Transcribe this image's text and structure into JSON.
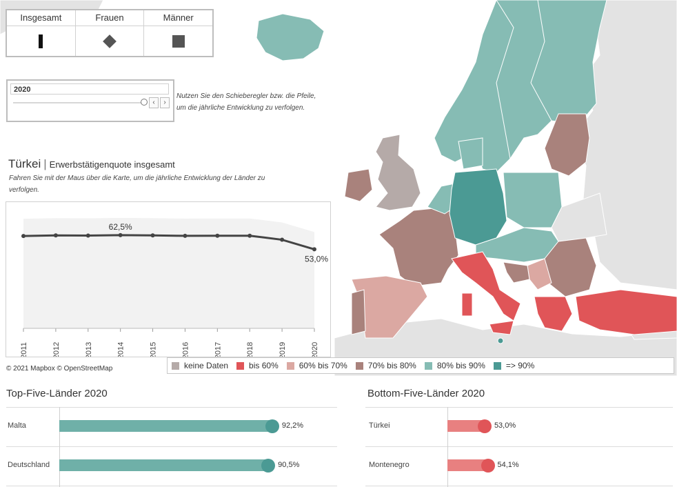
{
  "toggle": {
    "items": [
      {
        "label": "Insgesamt",
        "symbol": "bar-icon"
      },
      {
        "label": "Frauen",
        "symbol": "diamond-icon"
      },
      {
        "label": "Männer",
        "symbol": "square-icon"
      }
    ]
  },
  "slider": {
    "year": "2020",
    "position": 1.0,
    "hint_line1": "Nutzen Sie den Schieberegler bzw. die Pfeile,",
    "hint_line2": "um die jährliche Entwicklung zu verfolgen."
  },
  "detail": {
    "country": "Türkei",
    "separator": "|",
    "subtitle": "Erwerbstätigenquote insgesamt",
    "hint_line1": "Fahren Sie mit der Maus über die Karte, um die jährliche Entwicklung der Länder zu",
    "hint_line2": "verfolgen."
  },
  "copyright": "© 2021 Mapbox  © OpenStreetMap",
  "legend": [
    {
      "label": "keine Daten",
      "color": "#b5aaa8"
    },
    {
      "label": "bis 60%",
      "color": "#e05558"
    },
    {
      "label": "60% bis 70%",
      "color": "#dba8a2"
    },
    {
      "label": "70% bis 80%",
      "color": "#a9827c"
    },
    {
      "label": "80% bis 90%",
      "color": "#86bcb4"
    },
    {
      "label": "=> 90%",
      "color": "#4b9a94"
    }
  ],
  "top": {
    "title": "Top-Five-Länder 2020",
    "rows": [
      {
        "label": "Malta",
        "value": 92.2,
        "value_label": "92,2%"
      },
      {
        "label": "Deutschland",
        "value": 90.5,
        "value_label": "90,5%"
      }
    ]
  },
  "bottom": {
    "title": "Bottom-Five-Länder 2020",
    "rows": [
      {
        "label": "Türkei",
        "value": 53.0,
        "value_label": "53,0%"
      },
      {
        "label": "Montenegro",
        "value": 54.1,
        "value_label": "54,1%"
      }
    ]
  },
  "chart_data": [
    {
      "type": "line",
      "x": [
        "2011",
        "2012",
        "2013",
        "2014",
        "2015",
        "2016",
        "2017",
        "2018",
        "2019",
        "2020"
      ],
      "series": [
        {
          "values": [
            61.9,
            62.3,
            62.2,
            62.5,
            62.3,
            62.0,
            62.1,
            62.1,
            59.4,
            53.0
          ]
        }
      ],
      "labels": [
        {
          "x": "2014",
          "text": "62,5%"
        },
        {
          "x": "2020",
          "text": "53,0%"
        }
      ],
      "ylim": [
        0,
        80
      ],
      "grid": false
    },
    {
      "type": "bar",
      "categories": [
        "Malta",
        "Deutschland"
      ],
      "values": [
        92.2,
        90.5
      ],
      "title": "Top-Five-Länder 2020",
      "xlim": [
        0,
        100
      ],
      "color": "#6fb0a8",
      "dot_colors": [
        "#4b9a94",
        "#4b9a94"
      ]
    },
    {
      "type": "bar",
      "categories": [
        "Türkei",
        "Montenegro"
      ],
      "values": [
        53.0,
        54.1
      ],
      "title": "Bottom-Five-Länder 2020",
      "xlim": [
        40,
        100
      ],
      "color": "#e88080",
      "dot_colors": [
        "#e05558",
        "#e05558"
      ]
    }
  ]
}
